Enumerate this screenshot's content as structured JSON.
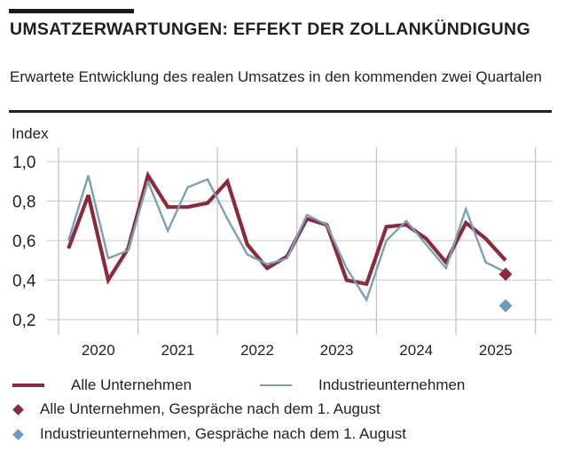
{
  "header": {
    "title": "UMSATZERWARTUNGEN: EFFEKT DER ZOLLANKÜNDIGUNG",
    "subtitle": "Erwartete Entwicklung des realen Umsatzes in den kommenden zwei Quartalen"
  },
  "colors": {
    "all_companies": "#8b2a3a",
    "industry": "#7aa0b8",
    "industry_diamond": "#6b9cc0",
    "grid": "#d0d0d0",
    "year_divider": "#c4c4c4"
  },
  "chart_data": {
    "type": "line",
    "title": "UMSATZERWARTUNGEN: EFFEKT DER ZOLLANKÜNDIGUNG",
    "subtitle": "Erwartete Entwicklung des realen Umsatzes in den kommenden zwei Quartalen",
    "ylabel": "Index",
    "xlabel": "",
    "ylim": [
      0.12,
      1.03
    ],
    "yticks": [
      1.0,
      0.8,
      0.6,
      0.4,
      0.2
    ],
    "ytick_labels": [
      "1,0",
      "0,8",
      "0,6",
      "0,4",
      "0,2"
    ],
    "grid": true,
    "years": [
      "2020",
      "2021",
      "2022",
      "2023",
      "2024",
      "2025"
    ],
    "x": [
      "2020Q1",
      "2020Q2",
      "2020Q3",
      "2020Q4",
      "2021Q1",
      "2021Q2",
      "2021Q3",
      "2021Q4",
      "2022Q1",
      "2022Q2",
      "2022Q3",
      "2022Q4",
      "2023Q1",
      "2023Q2",
      "2023Q3",
      "2023Q4",
      "2024Q1",
      "2024Q2",
      "2024Q3",
      "2024Q4",
      "2025Q1",
      "2025Q2",
      "2025Q3"
    ],
    "series": [
      {
        "name": "Alle Unternehmen",
        "kind": "line",
        "values": [
          0.56,
          0.83,
          0.4,
          0.56,
          0.93,
          0.77,
          0.77,
          0.79,
          0.9,
          0.58,
          0.46,
          0.52,
          0.71,
          0.68,
          0.4,
          0.38,
          0.67,
          0.68,
          0.61,
          0.49,
          0.69,
          0.61,
          0.5
        ]
      },
      {
        "name": "Industrieunternehmen",
        "kind": "line",
        "values": [
          0.6,
          0.93,
          0.51,
          0.55,
          0.9,
          0.65,
          0.87,
          0.91,
          0.71,
          0.53,
          0.48,
          0.51,
          0.73,
          0.68,
          0.46,
          0.3,
          0.6,
          0.7,
          0.58,
          0.46,
          0.76,
          0.49,
          0.44
        ]
      },
      {
        "name": "Alle Unternehmen, Gespräche nach dem 1. August",
        "kind": "marker",
        "x": "2025Q3",
        "value": 0.43
      },
      {
        "name": "Industrieunternehmen, Gespräche nach dem 1. August",
        "kind": "marker",
        "x": "2025Q3",
        "value": 0.27
      }
    ],
    "legend_position": "bottom"
  },
  "legend": {
    "all_line": "Alle Unternehmen",
    "industry_line": "Industrieunternehmen",
    "all_marker": "Alle Unternehmen, Gespräche nach dem 1. August",
    "industry_marker": "Industrieunternehmen, Gespräche nach dem 1. August"
  }
}
